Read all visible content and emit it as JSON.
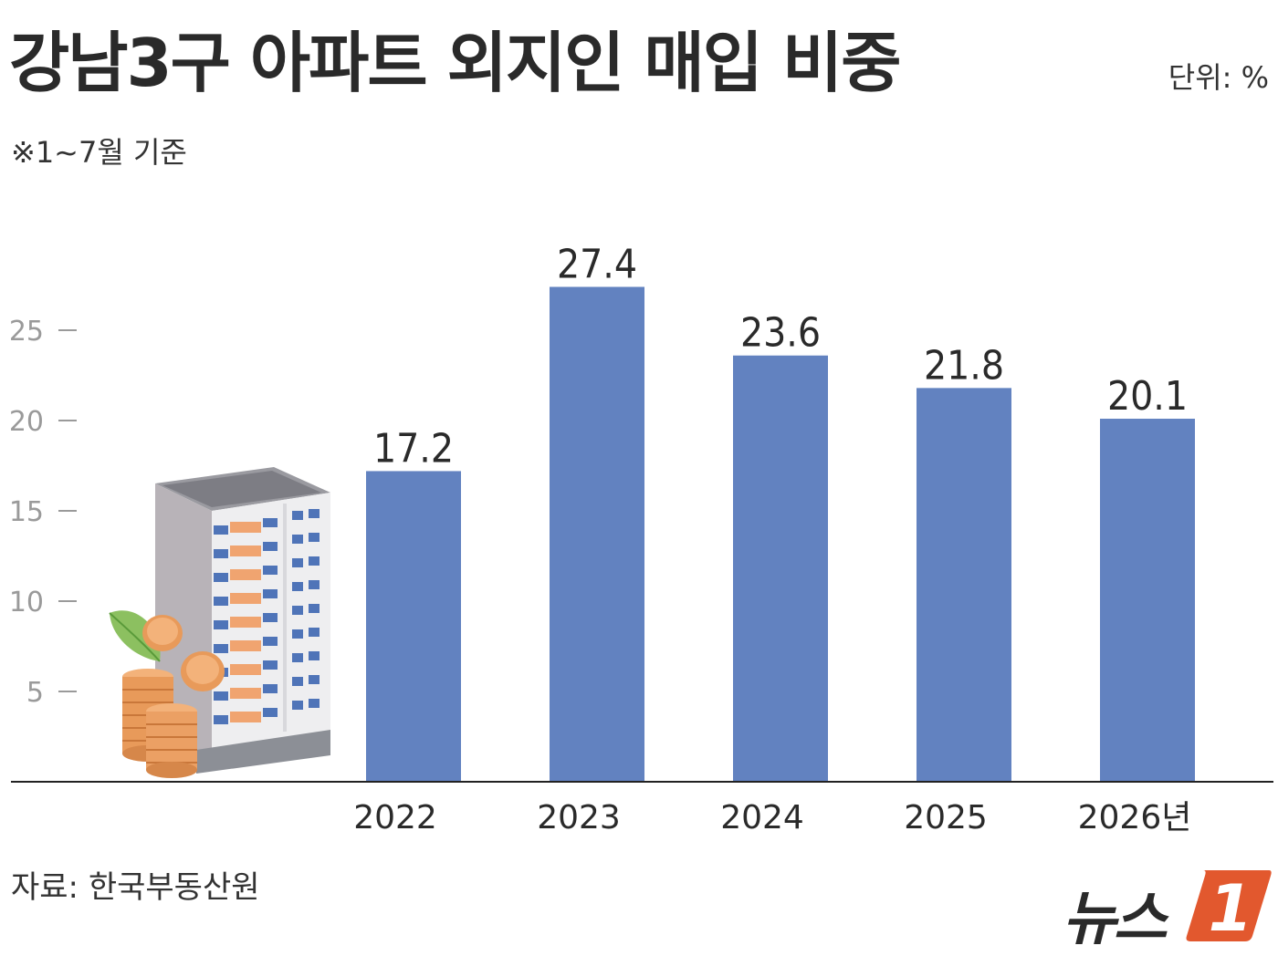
{
  "header": {
    "title": "강남3구 아파트 외지인 매입 비중",
    "subtitle": "※1~7월 기준",
    "unit": "단위: %"
  },
  "footer": {
    "source": "자료: 한국부동산원",
    "logo_text": "뉴스",
    "logo_mark": "1"
  },
  "colors": {
    "bar": "#6282c0",
    "axis": "#222222",
    "tick": "#9a9a9a",
    "logo_accent": "#e2582e"
  },
  "chart_data": {
    "type": "bar",
    "title": "강남3구 아파트 외지인 매입 비중",
    "categories": [
      "2022",
      "2023",
      "2024",
      "2025",
      "2026년"
    ],
    "values": [
      17.2,
      27.4,
      23.6,
      21.8,
      20.1
    ],
    "value_labels": [
      "17.2",
      "27.4",
      "23.6",
      "21.8",
      "20.1"
    ],
    "yticks": [
      5,
      10,
      15,
      20,
      25
    ],
    "ylim": [
      0,
      30
    ],
    "grid": false,
    "legend": "none"
  },
  "illustration": {
    "icon": "apartment-building-with-coins-icon"
  }
}
